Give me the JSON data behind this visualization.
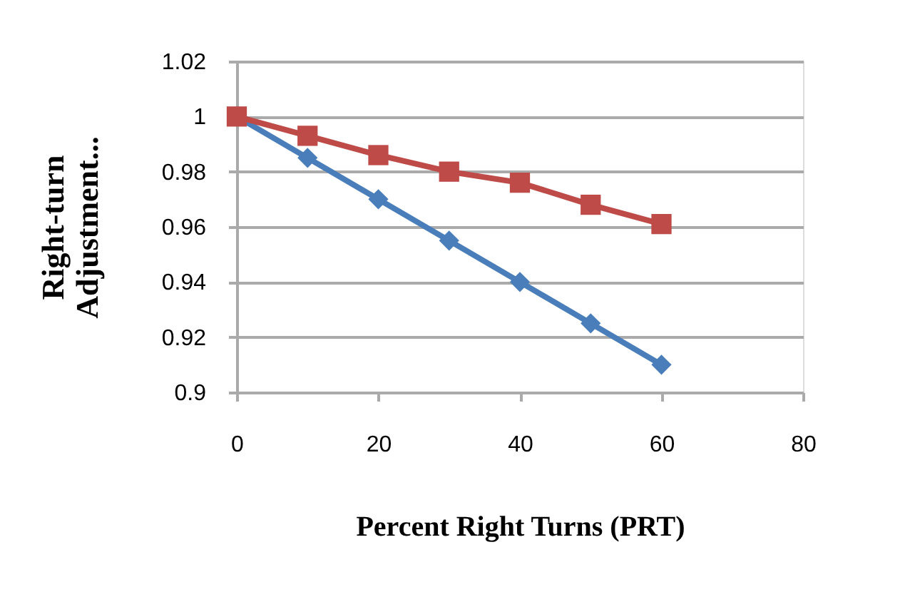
{
  "chart_data": {
    "type": "line",
    "xlabel": "Percent Right Turns (PRT)",
    "ylabel": "Right-turn Adjustment...",
    "x": [
      0,
      10,
      20,
      30,
      40,
      50,
      60
    ],
    "series": [
      {
        "color": "#4a7ebb",
        "marker": "diamond",
        "values": [
          1,
          0.985,
          0.97,
          0.955,
          0.94,
          0.925,
          0.91
        ]
      },
      {
        "color": "#be4b48",
        "marker": "square",
        "values": [
          1,
          0.993,
          0.986,
          0.98,
          0.976,
          0.968,
          0.961
        ]
      }
    ],
    "xlim": [
      0,
      80
    ],
    "xticks": [
      0,
      20,
      40,
      60,
      80
    ],
    "ylim": [
      0.9,
      1.02
    ],
    "yticks": [
      0.9,
      0.92,
      0.94,
      0.96,
      0.98,
      1,
      1.02
    ],
    "grid": "y",
    "legend": false,
    "line_style": "solid"
  }
}
